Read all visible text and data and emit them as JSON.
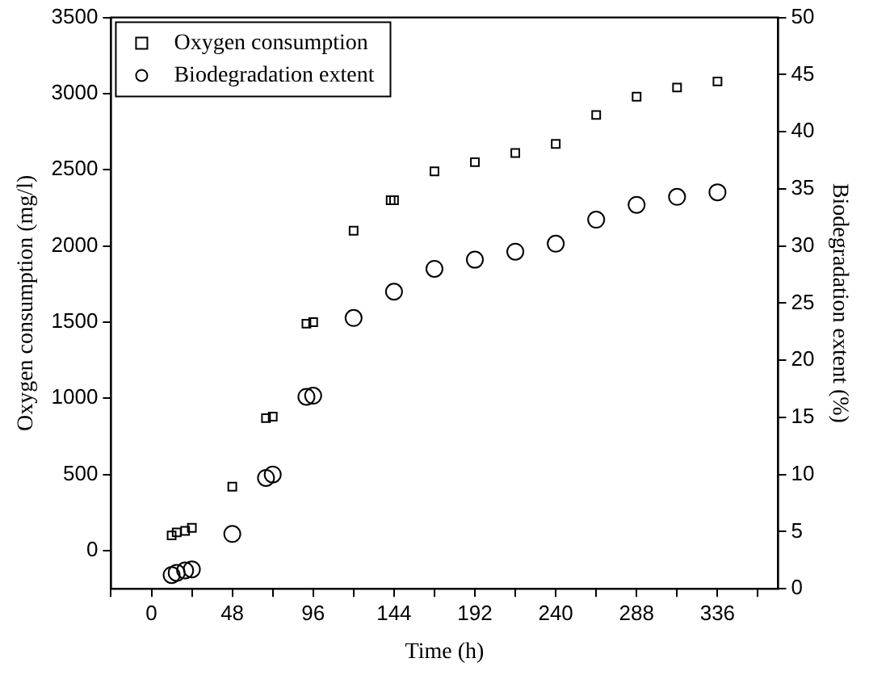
{
  "chart_data": {
    "type": "scatter",
    "xlabel": "Time (h)",
    "ylabel": "Oxygen consumption (mg/l)",
    "y2label": "Biodegradation extent (%)",
    "xlim": [
      -24,
      372
    ],
    "xticks": [
      {
        "value": -24,
        "label": null
      },
      0,
      {
        "value": 24,
        "label": null
      },
      48,
      {
        "value": 72,
        "label": null
      },
      96,
      {
        "value": 120,
        "label": null
      },
      144,
      {
        "value": 168,
        "label": null
      },
      192,
      {
        "value": 216,
        "label": null
      },
      240,
      {
        "value": 264,
        "label": null
      },
      288,
      {
        "value": 312,
        "label": null
      },
      336,
      {
        "value": 360,
        "label": null
      }
    ],
    "ylim": [
      -250,
      3500
    ],
    "yticks": [
      0,
      500,
      1000,
      1500,
      2000,
      2500,
      3000,
      3500
    ],
    "y2lim": [
      0,
      50
    ],
    "y2ticks": [
      0,
      5,
      10,
      15,
      20,
      25,
      30,
      35,
      40,
      45,
      50
    ],
    "grid": false,
    "legend": "top left",
    "series": [
      {
        "name": "Oxygen consumption",
        "color": "#000000",
        "marker": "square",
        "x": [
          12,
          15,
          20,
          24,
          48,
          68,
          72,
          92,
          96,
          120,
          142,
          144,
          168,
          192,
          216,
          240,
          264,
          288,
          312,
          336
        ],
        "values": [
          100,
          120,
          130,
          150,
          420,
          870,
          880,
          1490,
          1500,
          2100,
          2300,
          2300,
          2490,
          2550,
          2610,
          2670,
          2860,
          2980,
          3040,
          3080
        ]
      },
      {
        "name": "Biodegradation extent",
        "color": "#000000",
        "marker": "circle",
        "axis": "y2",
        "x": [
          12,
          15,
          20,
          24,
          48,
          68,
          72,
          92,
          96,
          120,
          144,
          168,
          192,
          216,
          240,
          264,
          288,
          312,
          336
        ],
        "values": [
          1.2,
          1.4,
          1.6,
          1.7,
          4.8,
          9.7,
          10,
          16.8,
          16.9,
          23.7,
          26,
          28,
          28.8,
          29.5,
          30.2,
          32.3,
          33.6,
          34.3,
          34.7
        ]
      }
    ]
  }
}
